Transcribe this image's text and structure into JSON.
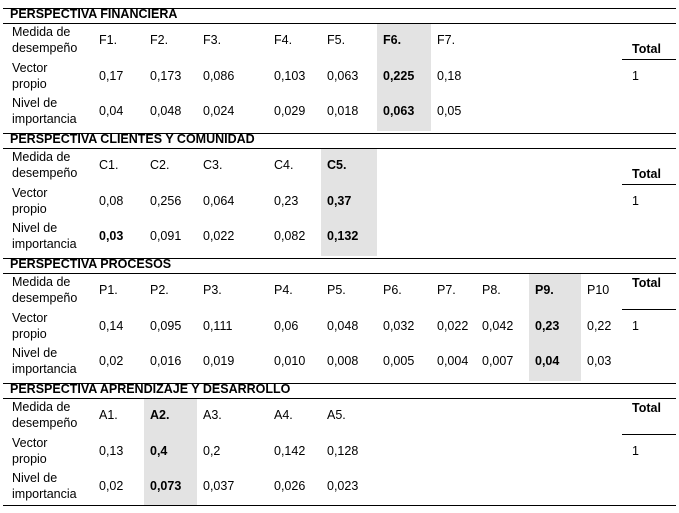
{
  "row_labels": {
    "measure_1": "Medida de",
    "measure_2": "desempeño",
    "vector_1": "Vector",
    "vector_2": "propio",
    "level_1": "Nivel de",
    "level_2": "importancia"
  },
  "total_label": "Total",
  "sections": [
    {
      "title": "PERSPECTIVA FINANCIERA",
      "codes": [
        "F1.",
        "F2.",
        "F3.",
        "F4.",
        "F5.",
        "F6.",
        "F7."
      ],
      "vector": [
        "0,17",
        "0,173",
        "0,086",
        "0,103",
        "0,063",
        "0,225",
        "0,18"
      ],
      "importance": [
        "0,04",
        "0,048",
        "0,024",
        "0,029",
        "0,018",
        "0,063",
        "0,05"
      ],
      "highlighted_index": 5,
      "total": "1"
    },
    {
      "title": "PERSPECTIVA CLIENTES Y COMUNIDAD",
      "codes": [
        "C1.",
        "C2.",
        "C3.",
        "C4.",
        "C5."
      ],
      "vector": [
        "0,08",
        "0,256",
        "0,064",
        "0,23",
        "0,37"
      ],
      "importance": [
        "0,03",
        "0,091",
        "0,022",
        "0,082",
        "0,132"
      ],
      "highlighted_index": 4,
      "total": "1"
    },
    {
      "title": "PERSPECTIVA PROCESOS",
      "codes": [
        "P1.",
        "P2.",
        "P3.",
        "P4.",
        "P5.",
        "P6.",
        "P7.",
        "P8.",
        "P9.",
        "P10"
      ],
      "vector": [
        "0,14",
        "0,095",
        "0,111",
        "0,06",
        "0,048",
        "0,032",
        "0,022",
        "0,042",
        "0,23",
        "0,22"
      ],
      "importance": [
        "0,02",
        "0,016",
        "0,019",
        "0,010",
        "0,008",
        "0,005",
        "0,004",
        "0,007",
        "0,04",
        "0,03"
      ],
      "highlighted_index": 8,
      "total": "1"
    },
    {
      "title": "PERSPECTIVA APRENDIZAJE Y DESARROLLO",
      "codes": [
        "A1.",
        "A2.",
        "A3.",
        "A4.",
        "A5."
      ],
      "vector": [
        "0,13",
        "0,4",
        "0,2",
        "0,142",
        "0,128"
      ],
      "importance": [
        "0,02",
        "0,073",
        "0,037",
        "0,026",
        "0,023"
      ],
      "highlighted_index": 1,
      "total": "1"
    }
  ]
}
